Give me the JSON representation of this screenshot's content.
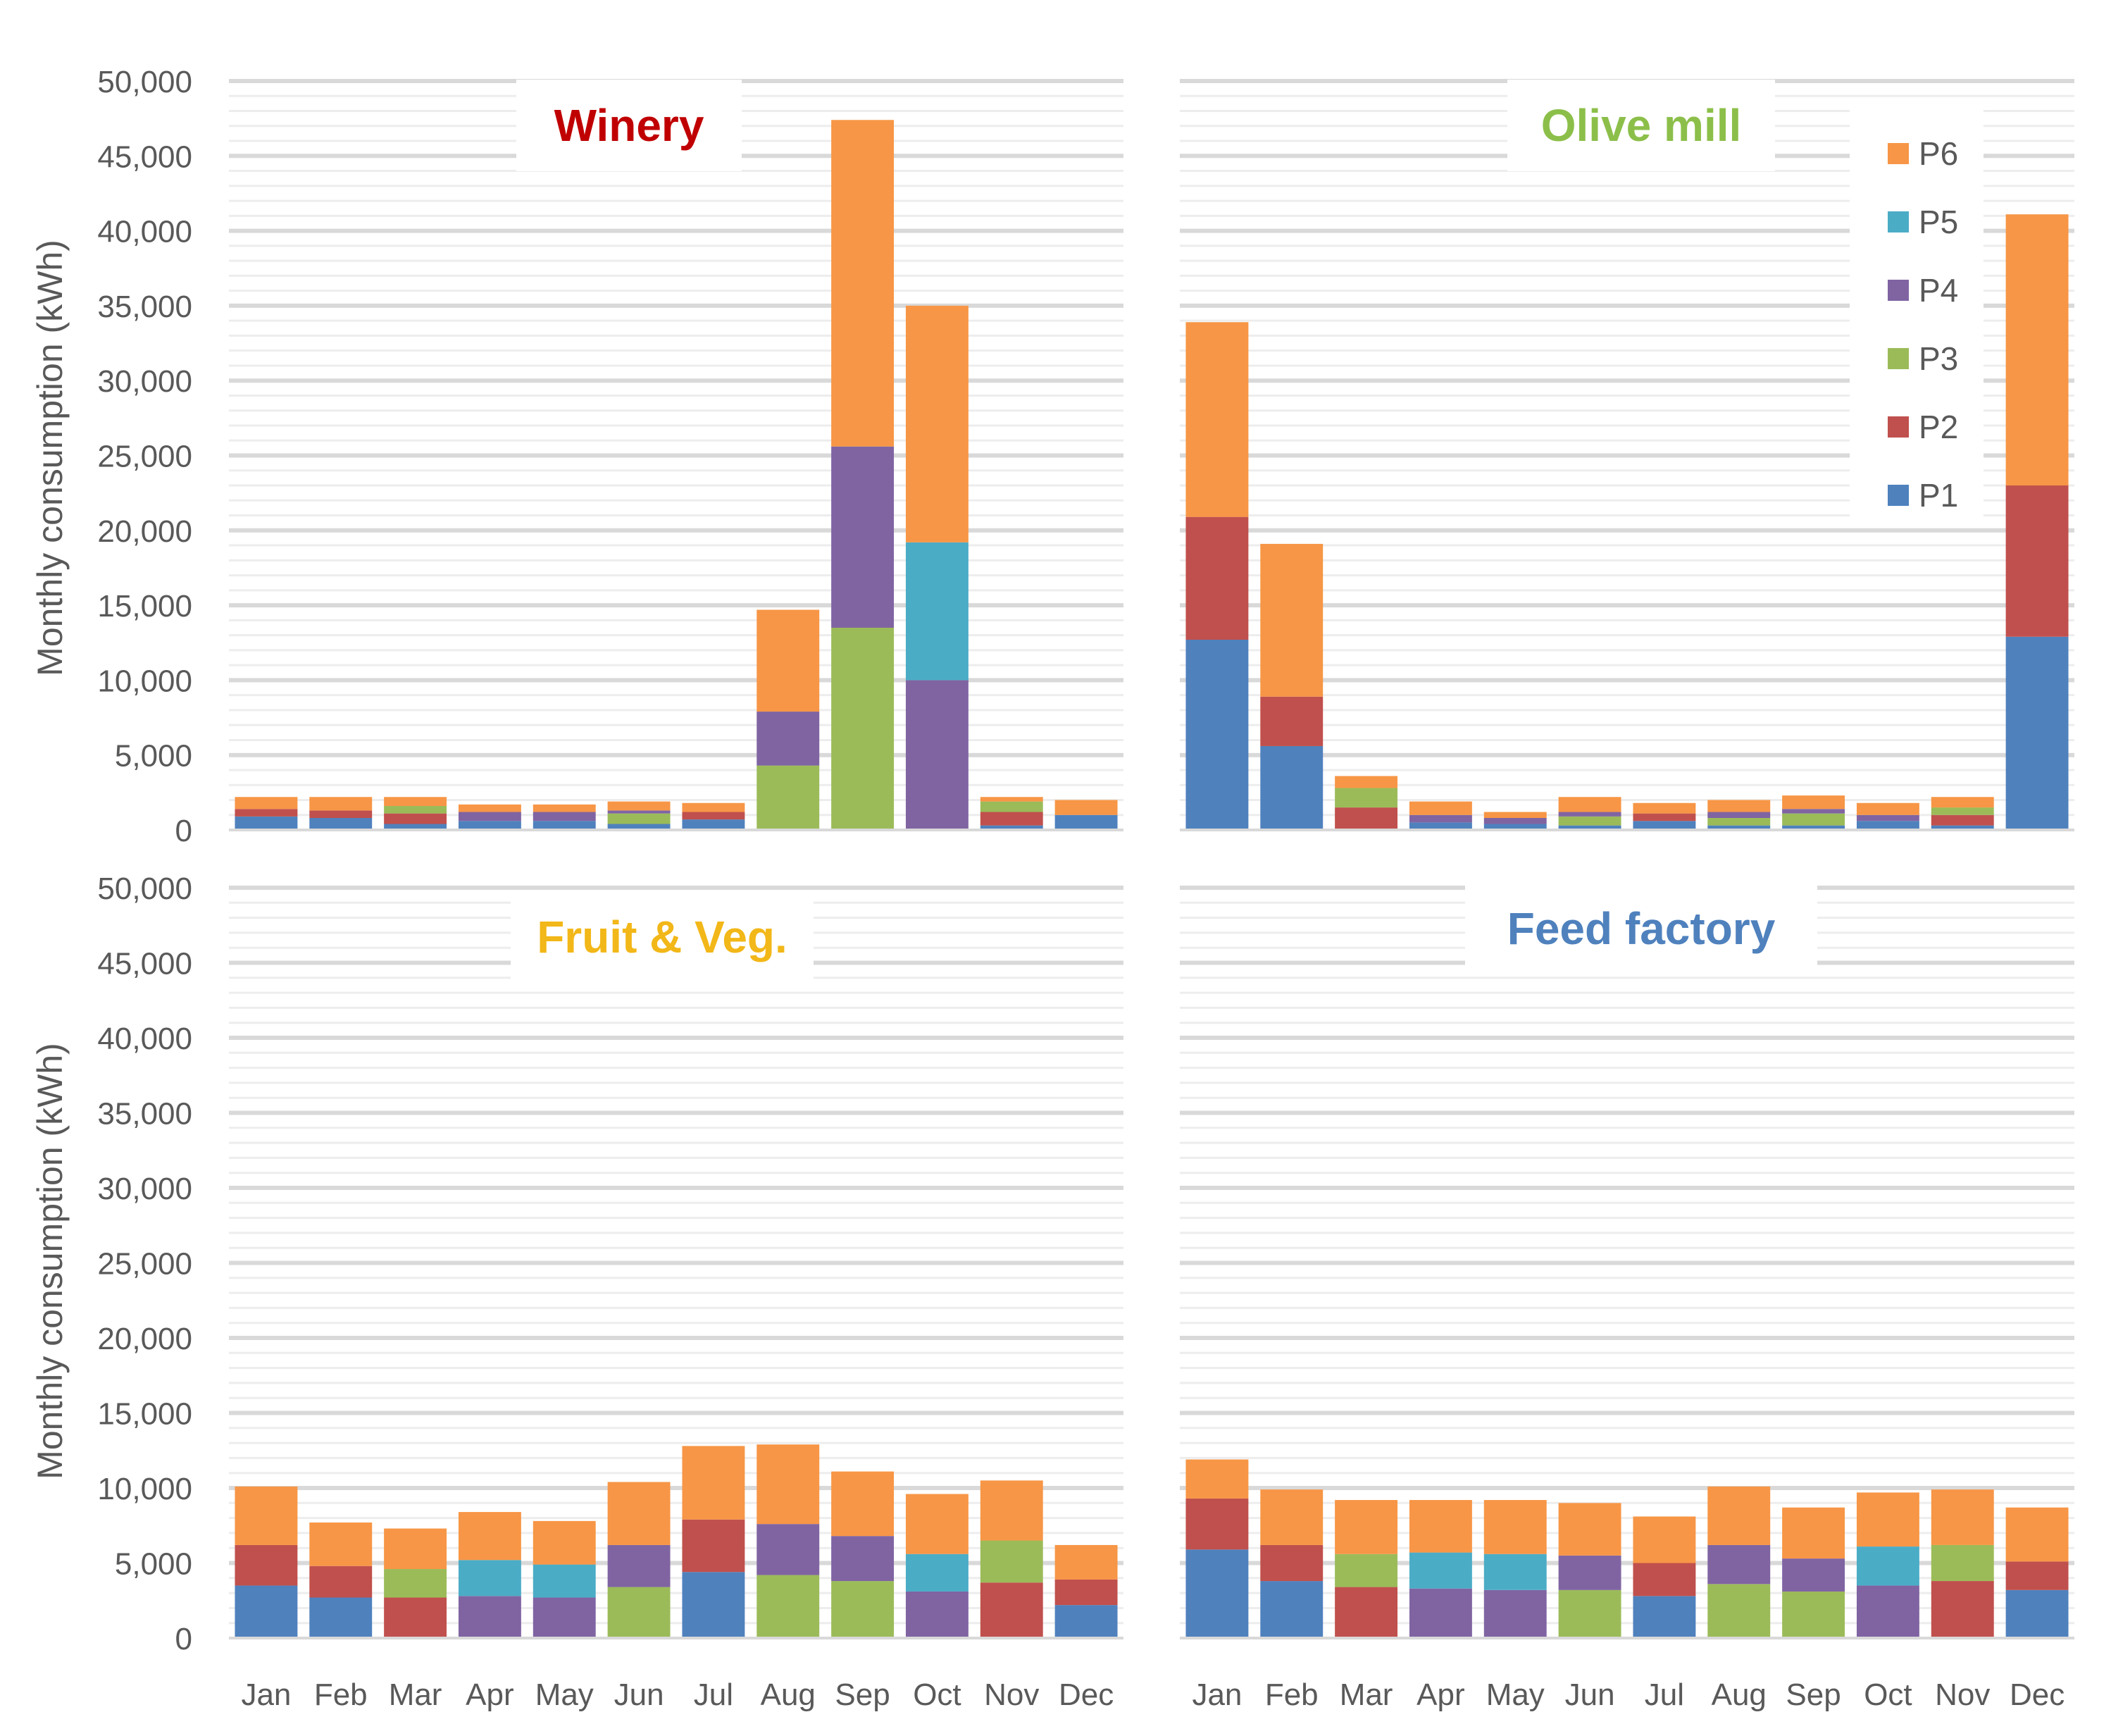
{
  "chart_data": [
    {
      "type": "bar",
      "stacked": true,
      "title": "Winery",
      "title_color": "#c00000",
      "ylabel": "Monthly consumption (kWh)",
      "ylim": [
        0,
        50000
      ],
      "categories": [
        "Jan",
        "Feb",
        "Mar",
        "Apr",
        "May",
        "Jun",
        "Jul",
        "Aug",
        "Sep",
        "Oct",
        "Nov",
        "Dec"
      ],
      "series": [
        {
          "name": "P1",
          "values": [
            900,
            800,
            400,
            600,
            600,
            400,
            700,
            0,
            0,
            0,
            300,
            1000
          ]
        },
        {
          "name": "P2",
          "values": [
            500,
            500,
            700,
            0,
            0,
            0,
            500,
            0,
            0,
            0,
            900,
            0
          ]
        },
        {
          "name": "P3",
          "values": [
            0,
            0,
            500,
            0,
            0,
            700,
            0,
            4300,
            13500,
            0,
            700,
            0
          ]
        },
        {
          "name": "P4",
          "values": [
            0,
            0,
            0,
            600,
            600,
            200,
            0,
            3600,
            12100,
            10000,
            0,
            0
          ]
        },
        {
          "name": "P5",
          "values": [
            0,
            0,
            0,
            0,
            0,
            0,
            0,
            0,
            0,
            9200,
            0,
            0
          ]
        },
        {
          "name": "P6",
          "values": [
            800,
            900,
            600,
            500,
            500,
            600,
            600,
            6800,
            21800,
            15800,
            300,
            1000
          ]
        }
      ]
    },
    {
      "type": "bar",
      "stacked": true,
      "title": "Olive mill",
      "title_color": "#8cbf4a",
      "ylim": [
        0,
        50000
      ],
      "categories": [
        "Jan",
        "Feb",
        "Mar",
        "Apr",
        "May",
        "Jun",
        "Jul",
        "Aug",
        "Sep",
        "Oct",
        "Nov",
        "Dec"
      ],
      "series": [
        {
          "name": "P1",
          "values": [
            12700,
            5600,
            0,
            500,
            400,
            300,
            600,
            300,
            300,
            600,
            300,
            12900
          ]
        },
        {
          "name": "P2",
          "values": [
            8200,
            3300,
            1500,
            0,
            0,
            0,
            500,
            0,
            0,
            0,
            700,
            10100
          ]
        },
        {
          "name": "P3",
          "values": [
            0,
            0,
            1300,
            0,
            0,
            600,
            0,
            500,
            800,
            0,
            500,
            0
          ]
        },
        {
          "name": "P4",
          "values": [
            0,
            0,
            0,
            500,
            400,
            300,
            0,
            400,
            300,
            400,
            0,
            0
          ]
        },
        {
          "name": "P5",
          "values": [
            0,
            0,
            0,
            0,
            0,
            0,
            0,
            0,
            0,
            0,
            0,
            0
          ]
        },
        {
          "name": "P6",
          "values": [
            13000,
            10200,
            800,
            900,
            400,
            1000,
            700,
            800,
            900,
            800,
            700,
            18100
          ]
        }
      ]
    },
    {
      "type": "bar",
      "stacked": true,
      "title": "Fruit & Veg.",
      "title_color": "#f2b718",
      "ylabel": "Monthly consumption (kWh)",
      "ylim": [
        0,
        50000
      ],
      "categories": [
        "Jan",
        "Feb",
        "Mar",
        "Apr",
        "May",
        "Jun",
        "Jul",
        "Aug",
        "Sep",
        "Oct",
        "Nov",
        "Dec"
      ],
      "series": [
        {
          "name": "P1",
          "values": [
            3500,
            2700,
            0,
            0,
            0,
            0,
            4400,
            0,
            0,
            0,
            0,
            2200
          ]
        },
        {
          "name": "P2",
          "values": [
            2700,
            2100,
            2700,
            0,
            0,
            0,
            3500,
            0,
            0,
            0,
            3700,
            1700
          ]
        },
        {
          "name": "P3",
          "values": [
            0,
            0,
            1900,
            0,
            0,
            3400,
            0,
            4200,
            3800,
            0,
            2800,
            0
          ]
        },
        {
          "name": "P4",
          "values": [
            0,
            0,
            0,
            2800,
            2700,
            2800,
            0,
            3400,
            3000,
            3100,
            0,
            0
          ]
        },
        {
          "name": "P5",
          "values": [
            0,
            0,
            0,
            2400,
            2200,
            0,
            0,
            0,
            0,
            2500,
            0,
            0
          ]
        },
        {
          "name": "P6",
          "values": [
            3900,
            2900,
            2700,
            3200,
            2900,
            4200,
            4900,
            5300,
            4300,
            4000,
            4000,
            2300
          ]
        }
      ]
    },
    {
      "type": "bar",
      "stacked": true,
      "title": "Feed factory",
      "title_color": "#4f81bd",
      "ylim": [
        0,
        50000
      ],
      "categories": [
        "Jan",
        "Feb",
        "Mar",
        "Apr",
        "May",
        "Jun",
        "Jul",
        "Aug",
        "Sep",
        "Oct",
        "Nov",
        "Dec"
      ],
      "series": [
        {
          "name": "P1",
          "values": [
            5900,
            3800,
            0,
            0,
            0,
            0,
            2800,
            0,
            0,
            0,
            0,
            3200
          ]
        },
        {
          "name": "P2",
          "values": [
            3400,
            2400,
            3400,
            0,
            0,
            0,
            2200,
            0,
            0,
            0,
            3800,
            1900
          ]
        },
        {
          "name": "P3",
          "values": [
            0,
            0,
            2200,
            0,
            0,
            3200,
            0,
            3600,
            3100,
            0,
            2400,
            0
          ]
        },
        {
          "name": "P4",
          "values": [
            0,
            0,
            0,
            3300,
            3200,
            2300,
            0,
            2600,
            2200,
            3500,
            0,
            0
          ]
        },
        {
          "name": "P5",
          "values": [
            0,
            0,
            0,
            2400,
            2400,
            0,
            0,
            0,
            0,
            2600,
            0,
            0
          ]
        },
        {
          "name": "P6",
          "values": [
            2600,
            3700,
            3600,
            3500,
            3600,
            3500,
            3100,
            3900,
            3400,
            3600,
            3700,
            3600
          ]
        }
      ]
    }
  ],
  "legend": {
    "entries": [
      {
        "name": "P6",
        "color": "#f79646"
      },
      {
        "name": "P5",
        "color": "#4bacc6"
      },
      {
        "name": "P4",
        "color": "#8064a2"
      },
      {
        "name": "P3",
        "color": "#9bbb59"
      },
      {
        "name": "P2",
        "color": "#c0504d"
      },
      {
        "name": "P1",
        "color": "#4f81bd"
      }
    ]
  },
  "colors": {
    "P1": "#4f81bd",
    "P2": "#c0504d",
    "P3": "#9bbb59",
    "P4": "#8064a2",
    "P5": "#4bacc6",
    "P6": "#f79646",
    "grid": "#e3e3e3",
    "text": "#595959"
  }
}
